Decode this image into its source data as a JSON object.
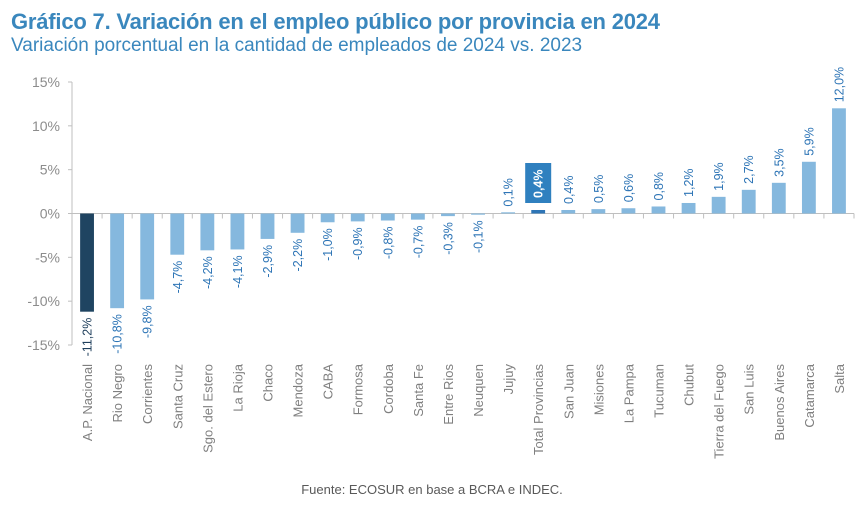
{
  "title": "Gráfico 7. Variación en el empleo público por provincia en 2024",
  "subtitle": "Variación porcentual en la cantidad de empleados de 2024 vs. 2023",
  "source": "Fuente: ECOSUR en base a BCRA e INDEC.",
  "colors": {
    "default_bar": "#85b8de",
    "national_bar": "#1f4461",
    "total_bar": "#2e75b6",
    "label_default": "#2e75b6",
    "label_national": "#1f3f5c",
    "title": "#3a87bd"
  },
  "chart_data": {
    "type": "bar",
    "title": "Gráfico 7. Variación en el empleo público por provincia en 2024",
    "subtitle": "Variación porcentual en la cantidad de empleados de 2024 vs. 2023",
    "xlabel": "",
    "ylabel": "",
    "ylim": [
      -15,
      15
    ],
    "yticks": [
      15,
      10,
      5,
      0,
      -5,
      -10,
      -15
    ],
    "ytick_labels": [
      "15%",
      "10%",
      "5%",
      "0%",
      "-5%",
      "-10%",
      "-15%"
    ],
    "grid": false,
    "legend": "none",
    "categories": [
      "A.P. Nacional",
      "Rio Negro",
      "Corrientes",
      "Santa Cruz",
      "Sgo. del Estero",
      "La Rioja",
      "Chaco",
      "Mendoza",
      "CABA",
      "Formosa",
      "Cordoba",
      "Santa Fe",
      "Entre Rios",
      "Neuquen",
      "Jujuy",
      "Total Provincias",
      "San Juan",
      "Misiones",
      "La Pampa",
      "Tucuman",
      "Chubut",
      "Tierra del Fuego",
      "San Luis",
      "Buenos Aires",
      "Catamarca",
      "Salta"
    ],
    "values": [
      -11.2,
      -10.8,
      -9.8,
      -4.7,
      -4.2,
      -4.1,
      -2.9,
      -2.2,
      -1.0,
      -0.9,
      -0.8,
      -0.7,
      -0.3,
      -0.1,
      0.1,
      0.4,
      0.4,
      0.5,
      0.6,
      0.8,
      1.2,
      1.9,
      2.7,
      3.5,
      5.9,
      12.0
    ],
    "data_labels": [
      "-11,2%",
      "-10,8%",
      "-9,8%",
      "-4,7%",
      "-4,2%",
      "-4,1%",
      "-2,9%",
      "-2,2%",
      "-1,0%",
      "-0,9%",
      "-0,8%",
      "-0,7%",
      "-0,3%",
      "-0,1%",
      "0,1%",
      "0,4%",
      "0,4%",
      "0,5%",
      "0,6%",
      "0,8%",
      "1,2%",
      "1,9%",
      "2,7%",
      "3,5%",
      "5,9%",
      "12,0%"
    ],
    "highlight": {
      "A.P. Nacional": "national",
      "Total Provincias": "total"
    }
  }
}
